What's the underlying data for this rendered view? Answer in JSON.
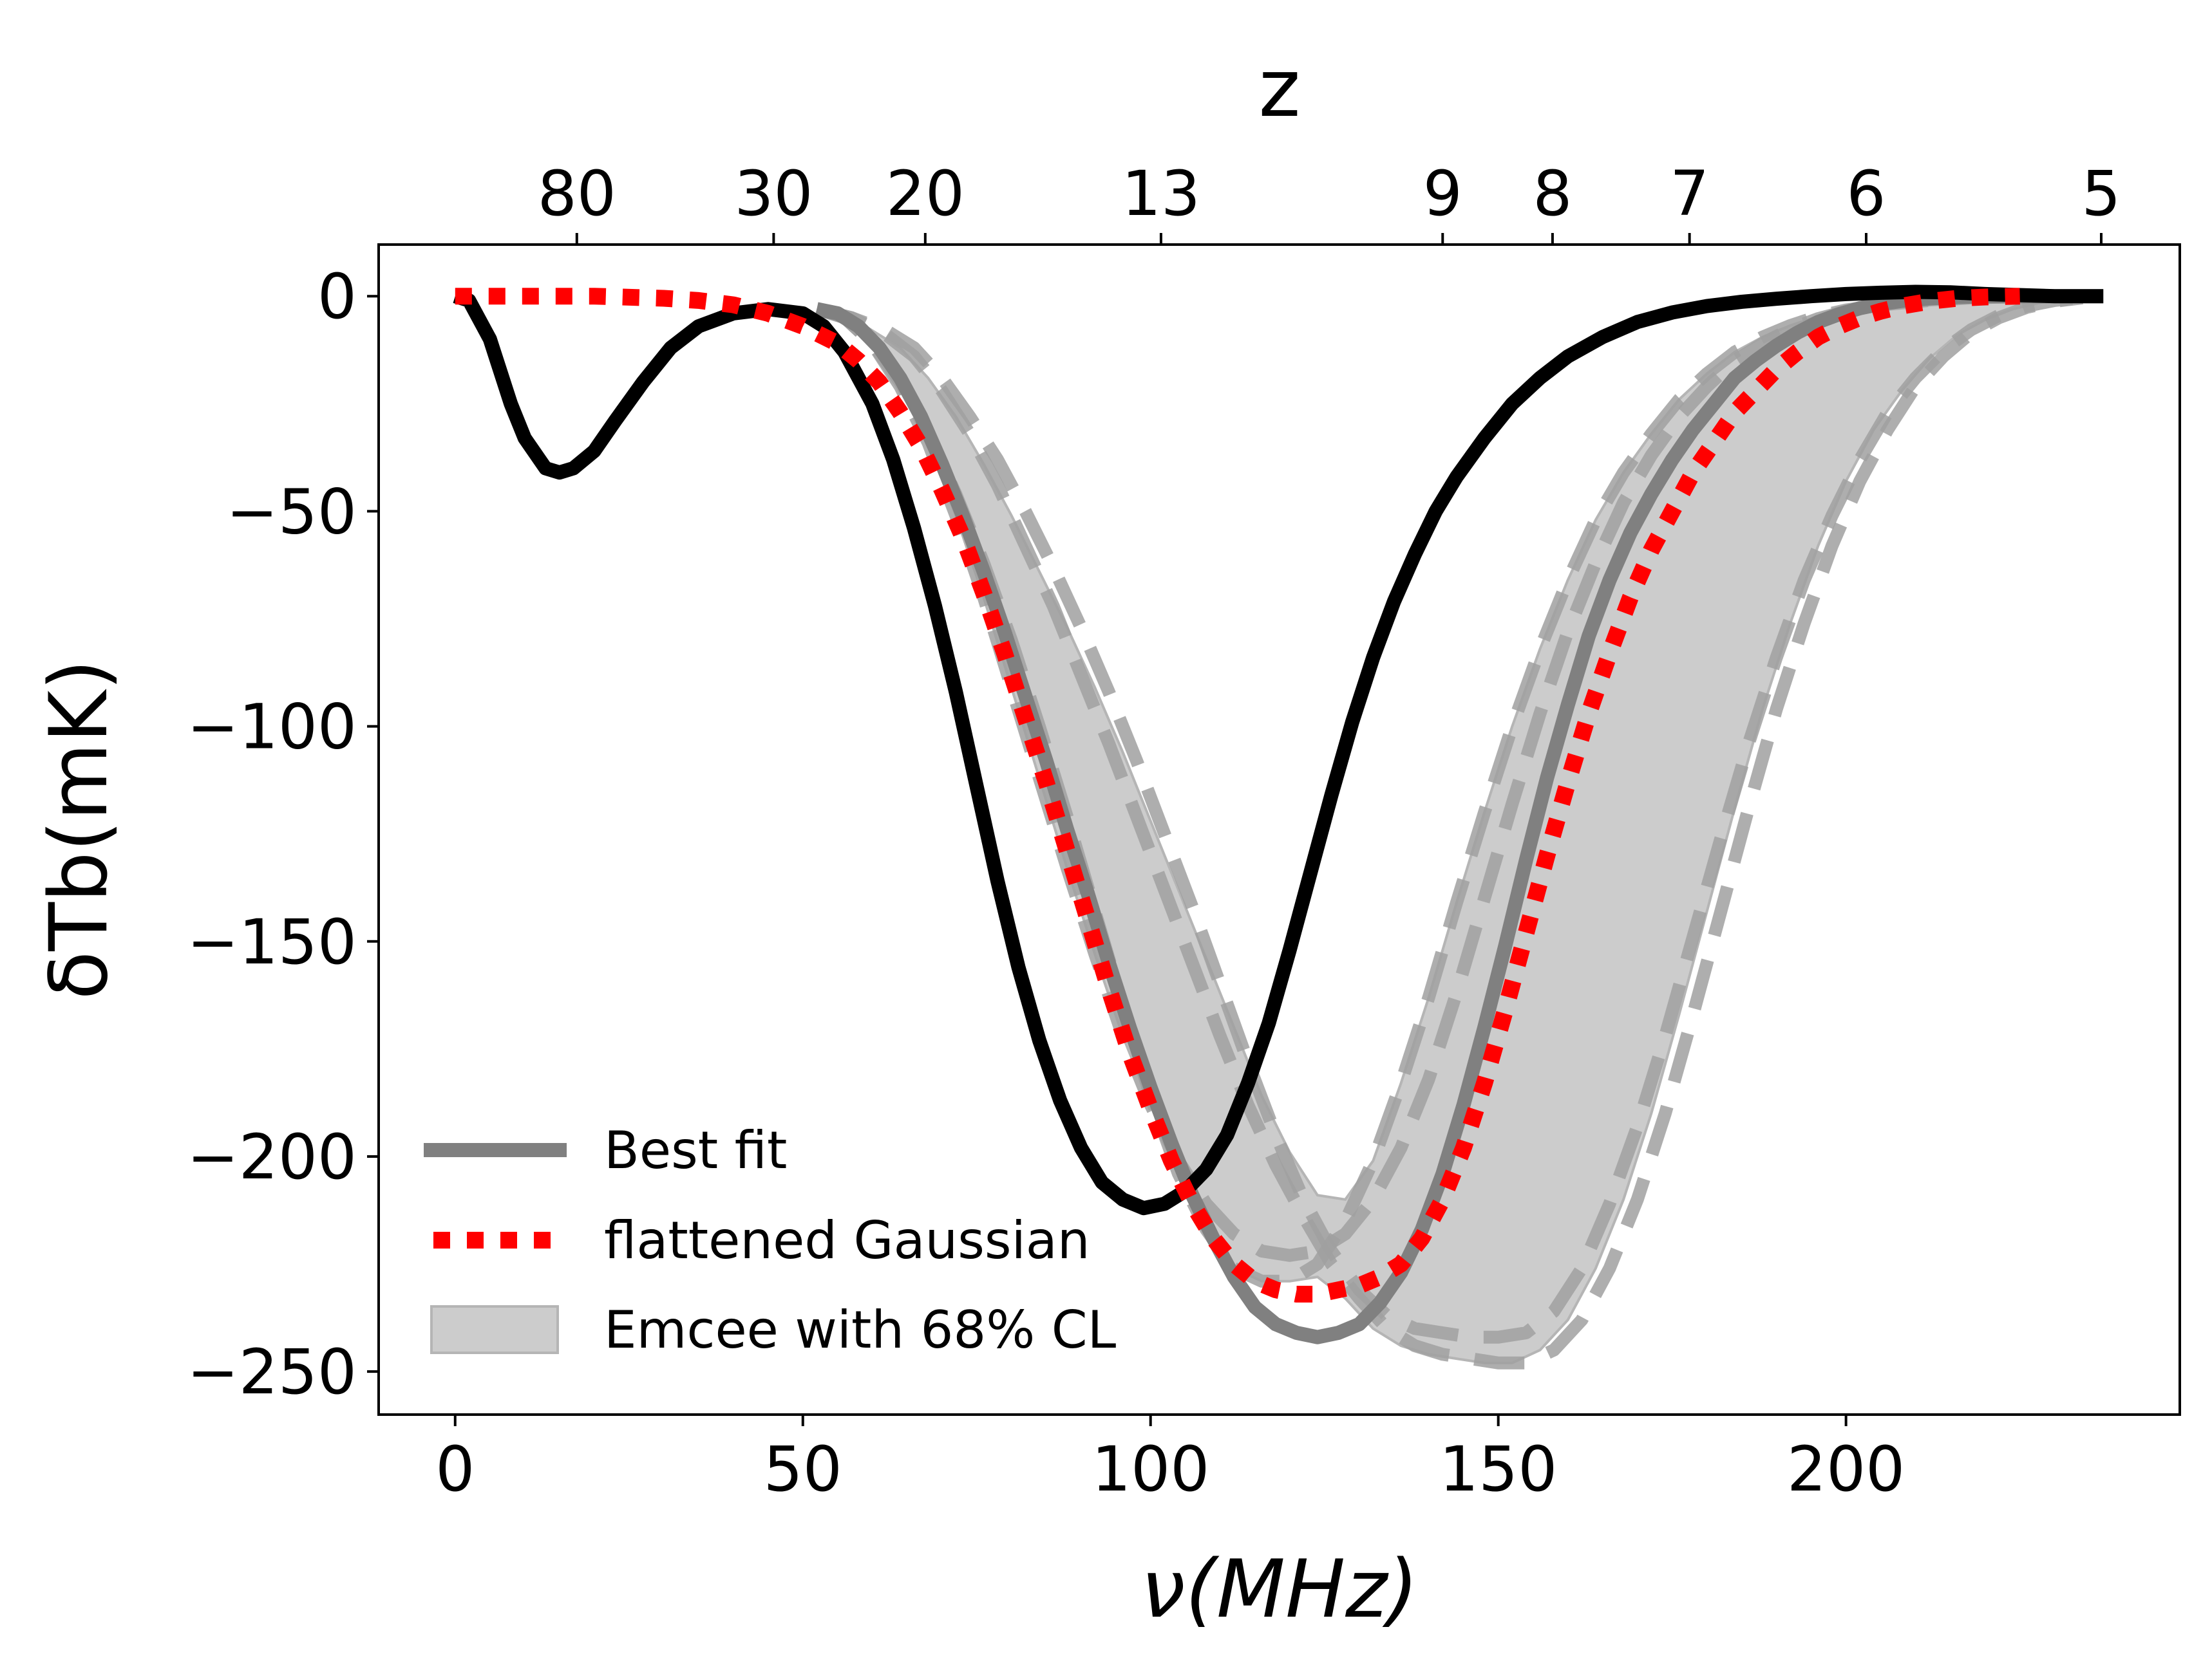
{
  "chart_data": {
    "type": "line",
    "xlabel": "ν(MHz)",
    "ylabel": "δTb(mK)",
    "top_xlabel": "z",
    "xlim": [
      -11,
      248
    ],
    "ylim": [
      -260,
      12
    ],
    "xticks": [
      0,
      50,
      100,
      150,
      200
    ],
    "xtick_labels": [
      "0",
      "50",
      "100",
      "150",
      "200"
    ],
    "yticks": [
      0,
      -50,
      -100,
      -150,
      -200,
      -250
    ],
    "ytick_labels": [
      "0",
      "−50",
      "−100",
      "−150",
      "−200",
      "−250"
    ],
    "top_ticks": [
      {
        "z": 80,
        "nu": 17.5,
        "label": "80"
      },
      {
        "z": 30,
        "nu": 45.8,
        "label": "30"
      },
      {
        "z": 20,
        "nu": 67.6,
        "label": "20"
      },
      {
        "z": 13,
        "nu": 101.5,
        "label": "13"
      },
      {
        "z": 9,
        "nu": 142.0,
        "label": "9"
      },
      {
        "z": 8,
        "nu": 157.8,
        "label": "8"
      },
      {
        "z": 7,
        "nu": 177.5,
        "label": "7"
      },
      {
        "z": 6,
        "nu": 202.9,
        "label": "6"
      },
      {
        "z": 5,
        "nu": 236.7,
        "label": "5"
      }
    ],
    "grid": false,
    "legend_position": "lower-left",
    "series": [
      {
        "name": "",
        "color": "#000000",
        "style": "solid",
        "x": [
          0,
          2,
          5,
          8,
          10,
          13,
          15,
          17,
          20,
          23,
          27,
          31,
          35,
          40,
          45,
          50,
          53,
          56,
          60,
          63,
          66,
          69,
          72,
          75,
          78,
          81,
          84,
          87,
          90,
          93,
          96,
          99,
          102,
          105,
          108,
          111,
          114,
          117,
          120,
          123,
          126,
          129,
          132,
          135,
          138,
          141,
          144,
          148,
          152,
          156,
          160,
          165,
          170,
          175,
          180,
          185,
          190,
          195,
          200,
          205,
          210,
          215,
          220,
          230,
          237
        ],
        "y": [
          0,
          -1,
          -10,
          -25,
          -33,
          -40,
          -41,
          -40,
          -36,
          -29,
          -20,
          -12,
          -7,
          -4,
          -3,
          -4,
          -7,
          -13,
          -25,
          -38,
          -54,
          -72,
          -92,
          -114,
          -136,
          -156,
          -173,
          -187,
          -198,
          -206,
          -210,
          -212,
          -211,
          -208,
          -203,
          -195,
          -183,
          -169,
          -152,
          -134,
          -116,
          -99,
          -84,
          -71,
          -60,
          -50,
          -42,
          -33,
          -25,
          -19,
          -14,
          -9.5,
          -6,
          -3.8,
          -2.3,
          -1.3,
          -0.6,
          0,
          0.5,
          0.8,
          1,
          0.9,
          0.5,
          0,
          0
        ]
      },
      {
        "name": "Best fit",
        "color": "#808080",
        "style": "solid",
        "x": [
          52,
          55,
          58,
          61,
          64,
          67,
          70,
          73,
          76,
          79,
          82,
          85,
          88,
          91,
          94,
          97,
          100,
          103,
          106,
          109,
          112,
          115,
          118,
          121,
          124,
          127,
          130,
          133,
          136,
          139,
          142,
          145,
          148,
          151,
          154,
          157,
          160,
          163,
          166,
          169,
          172,
          175,
          178,
          181,
          184,
          187,
          190,
          193,
          196,
          199,
          202,
          205,
          208,
          212,
          216,
          220,
          225,
          230,
          237
        ],
        "y": [
          -3,
          -4,
          -7,
          -12,
          -19,
          -28,
          -39,
          -51,
          -64,
          -78,
          -93,
          -108,
          -124,
          -139,
          -155,
          -170,
          -184,
          -197,
          -209,
          -219,
          -228,
          -235,
          -239,
          -241,
          -242,
          -241,
          -239,
          -234,
          -227,
          -217,
          -204,
          -188,
          -170,
          -151,
          -131,
          -112,
          -95,
          -79,
          -66,
          -55,
          -46,
          -38,
          -31,
          -25,
          -19,
          -15,
          -11.5,
          -8.5,
          -6,
          -4.2,
          -2.8,
          -1.8,
          -1.1,
          -0.5,
          -0.2,
          0,
          0,
          0,
          0
        ]
      },
      {
        "name": "flattened Gaussian",
        "color": "#ff0000",
        "style": "dotted",
        "x": [
          0,
          10,
          20,
          30,
          35,
          40,
          45,
          50,
          55,
          58,
          61,
          64,
          67,
          70,
          73,
          76,
          79,
          82,
          85,
          88,
          91,
          94,
          97,
          100,
          103,
          106,
          109,
          112,
          115,
          118,
          121,
          124,
          127,
          130,
          133,
          136,
          139,
          142,
          145,
          148,
          151,
          154,
          157,
          160,
          163,
          166,
          169,
          172,
          175,
          178,
          181,
          184,
          187,
          190,
          193,
          196,
          199,
          202,
          205,
          208,
          212,
          216,
          220,
          225
        ],
        "y": [
          0,
          0,
          0,
          -0.5,
          -1,
          -2,
          -4,
          -7,
          -11,
          -15,
          -20,
          -27,
          -35,
          -45,
          -56,
          -69,
          -83,
          -98,
          -113,
          -129,
          -145,
          -161,
          -176,
          -189,
          -201,
          -211,
          -219,
          -225,
          -229,
          -231,
          -232,
          -232,
          -231,
          -230,
          -228,
          -225,
          -219,
          -210,
          -198,
          -183,
          -166,
          -148,
          -130,
          -113,
          -97,
          -83,
          -70,
          -59,
          -50,
          -41,
          -34,
          -27,
          -22,
          -17,
          -13,
          -9.5,
          -7,
          -5,
          -3.5,
          -2.3,
          -1.2,
          -0.5,
          -0.2,
          0
        ]
      },
      {
        "name": "",
        "color": "#a0a0a0",
        "style": "dashed",
        "x": [
          52,
          56,
          60,
          64,
          68,
          72,
          76,
          80,
          84,
          88,
          92,
          96,
          100,
          104,
          108,
          112,
          116,
          120,
          124,
          128,
          132,
          136,
          140,
          144,
          148,
          152,
          156,
          160,
          164,
          168,
          172,
          176,
          180,
          184,
          188,
          192,
          196,
          200,
          206,
          212,
          218,
          225,
          232
        ],
        "y": [
          -3,
          -5,
          -11,
          -20,
          -32,
          -46,
          -62,
          -80,
          -100,
          -121,
          -143,
          -165,
          -186,
          -204,
          -217,
          -226,
          -229,
          -229,
          -225,
          -215,
          -201,
          -183,
          -163,
          -141,
          -120,
          -100,
          -82,
          -66,
          -52,
          -41,
          -32,
          -24,
          -18,
          -13,
          -9.5,
          -6.8,
          -4.7,
          -3.2,
          -1.8,
          -0.9,
          -0.4,
          -0.1,
          0
        ]
      },
      {
        "name": "",
        "color": "#a0a0a0",
        "style": "dashed",
        "x": [
          52,
          57,
          62,
          66,
          70,
          74,
          78,
          82,
          86,
          90,
          94,
          98,
          102,
          106,
          110,
          114,
          118,
          122,
          126,
          130,
          134,
          138,
          142,
          146,
          150,
          154,
          158,
          162,
          166,
          170,
          174,
          178,
          182,
          186,
          190,
          194,
          198,
          202,
          206,
          210,
          214,
          218,
          222,
          226,
          230,
          234
        ],
        "y": [
          -3,
          -5,
          -9,
          -14,
          -22,
          -32,
          -44,
          -58,
          -72,
          -88,
          -104,
          -121,
          -138,
          -155,
          -172,
          -188,
          -202,
          -214,
          -225,
          -233,
          -240,
          -244,
          -246,
          -247,
          -248,
          -248,
          -245,
          -238,
          -226,
          -210,
          -190,
          -167,
          -143,
          -119,
          -96,
          -76,
          -58,
          -43,
          -31,
          -21,
          -14,
          -8.5,
          -5,
          -2.6,
          -1.2,
          -0.4
        ]
      },
      {
        "name": "",
        "color": "#a0a0a0",
        "style": "dashed",
        "x": [
          52,
          56,
          60,
          64,
          68,
          72,
          76,
          80,
          84,
          88,
          92,
          96,
          100,
          104,
          108,
          112,
          116,
          120,
          124,
          128,
          132,
          136,
          140,
          144,
          148,
          152,
          156,
          160,
          164,
          168,
          172,
          176,
          180,
          184,
          188,
          192,
          196,
          200,
          206,
          212,
          218,
          225,
          232
        ],
        "y": [
          -3,
          -5,
          -11,
          -21,
          -34,
          -51,
          -70,
          -91,
          -112,
          -133,
          -153,
          -172,
          -188,
          -201,
          -211,
          -218,
          -222,
          -223,
          -222,
          -218,
          -210,
          -198,
          -182,
          -162,
          -140,
          -118,
          -97,
          -78,
          -62,
          -48,
          -37,
          -28,
          -21,
          -15,
          -11,
          -7.6,
          -5.2,
          -3.5,
          -1.9,
          -1,
          -0.4,
          -0.1,
          0
        ]
      },
      {
        "name": "",
        "color": "#a0a0a0",
        "style": "dashed",
        "x": [
          52,
          57,
          62,
          66,
          70,
          74,
          78,
          82,
          86,
          90,
          94,
          98,
          102,
          106,
          110,
          114,
          118,
          122,
          126,
          130,
          134,
          138,
          142,
          146,
          150,
          154,
          158,
          162,
          166,
          170,
          174,
          178,
          182,
          186,
          190,
          194,
          198,
          202,
          206,
          210,
          214,
          218,
          222,
          226,
          230,
          234
        ],
        "y": [
          -3,
          -5,
          -8,
          -12,
          -19,
          -28,
          -38,
          -50,
          -63,
          -77,
          -92,
          -108,
          -125,
          -142,
          -160,
          -178,
          -195,
          -210,
          -222,
          -231,
          -237,
          -240,
          -241,
          -242,
          -242,
          -241,
          -236,
          -226,
          -211,
          -193,
          -172,
          -149,
          -126,
          -104,
          -84,
          -66,
          -51,
          -38,
          -27,
          -19,
          -12.5,
          -7.8,
          -4.5,
          -2.3,
          -1,
          -0.3
        ]
      }
    ],
    "band": {
      "name": "Emcee with 68% CL",
      "color": "#cccccc",
      "x": [
        52,
        56,
        60,
        64,
        68,
        72,
        76,
        80,
        84,
        88,
        92,
        96,
        100,
        104,
        108,
        112,
        116,
        120,
        124,
        128,
        132,
        136,
        140,
        144,
        148,
        152,
        156,
        160,
        164,
        168,
        172,
        176,
        180,
        184,
        188,
        192,
        196,
        200,
        204,
        208,
        212,
        216,
        220,
        224,
        228,
        232,
        236
      ],
      "upper": [
        -3,
        -4,
        -8,
        -12,
        -19,
        -28,
        -39,
        -51,
        -64,
        -77,
        -91,
        -106,
        -122,
        -138,
        -154,
        -170,
        -186,
        -199,
        -209,
        -210,
        -201,
        -183,
        -163,
        -141,
        -120,
        -100,
        -82,
        -66,
        -52,
        -41,
        -32,
        -24,
        -18,
        -13,
        -9.5,
        -6.8,
        -4.7,
        -3.2,
        -2,
        -1.3,
        -0.8,
        -0.4,
        -0.2,
        -0.1,
        0,
        0,
        0
      ],
      "lower": [
        -3,
        -5,
        -11,
        -21,
        -34,
        -51,
        -70,
        -91,
        -112,
        -133,
        -153,
        -172,
        -188,
        -204,
        -217,
        -226,
        -229,
        -229,
        -228,
        -233,
        -240,
        -244,
        -246,
        -247,
        -248,
        -248,
        -245,
        -238,
        -226,
        -210,
        -190,
        -167,
        -143,
        -119,
        -96,
        -76,
        -58,
        -43,
        -31,
        -22,
        -14.5,
        -9,
        -5.5,
        -3,
        -1.5,
        -0.6,
        -0.1
      ]
    }
  },
  "legend": {
    "items": [
      {
        "label": "Best fit",
        "color": "#808080",
        "kind": "line"
      },
      {
        "label": "flattened Gaussian",
        "color": "#ff0000",
        "kind": "dotted"
      },
      {
        "label": "Emcee with 68% CL",
        "color": "#cccccc",
        "kind": "patch"
      }
    ]
  }
}
